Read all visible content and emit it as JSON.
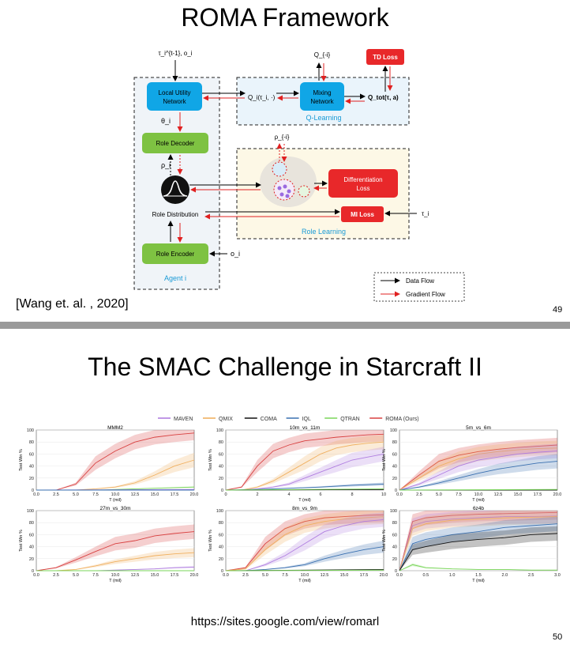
{
  "slide1": {
    "title": "ROMA Framework",
    "citation": "[Wang et. al. , 2020]",
    "page_number": "49",
    "diagram": {
      "agent_label": "Agent i",
      "local_utility": "Local Utility Network",
      "role_decoder": "Role Decoder",
      "role_distribution": "Role Distribution",
      "role_encoder": "Role Encoder",
      "mixing_network": "Mixing Network",
      "q_learning": "Q-Learning",
      "td_loss": "TD Loss",
      "diff_loss": "Differentiation Loss",
      "mi_loss": "MI Loss",
      "role_learning": "Role Learning",
      "input_top": "τ_i^{t-1}, o_i",
      "theta": "θ_i",
      "rho": "ρ_i",
      "o_i": "o_i",
      "q_minus_i": "Q_{-i}",
      "rho_minus_i": "ρ_{-i}",
      "q_i": "Q_i(τ_i, ·)",
      "q_tot": "Q_tot(τ, a)",
      "tau_i": "τ_i",
      "data_flow": "Data Flow",
      "gradient_flow": "Gradient Flow"
    }
  },
  "slide2": {
    "title": "The SMAC Challenge in Starcraft II",
    "url": "https://sites.google.com/view/romarl",
    "page_number": "50",
    "legend": [
      {
        "name": "MAVEN",
        "color": "#b07ee0"
      },
      {
        "name": "QMIX",
        "color": "#f0b060"
      },
      {
        "name": "COMA",
        "color": "#111111"
      },
      {
        "name": "IQL",
        "color": "#3a70b0"
      },
      {
        "name": "QTRAN",
        "color": "#7ad65a"
      },
      {
        "name": "ROMA (Ours)",
        "color": "#d84040"
      }
    ]
  },
  "chart_data": [
    {
      "type": "line",
      "title": "MMM2",
      "xlabel": "T (mil)",
      "ylabel": "Test Win %",
      "xlim": [
        0,
        20
      ],
      "ylim": [
        0,
        100
      ],
      "xticks": [
        "0.0",
        "2.5",
        "5.0",
        "7.5",
        "10.0",
        "12.5",
        "15.0",
        "17.5",
        "20.0"
      ],
      "yticks": [
        "0",
        "20",
        "40",
        "60",
        "80",
        "100"
      ],
      "series": [
        {
          "name": "ROMA (Ours)",
          "x": [
            0,
            2.5,
            5,
            7.5,
            10,
            12.5,
            15,
            17.5,
            20
          ],
          "y": [
            0,
            0,
            10,
            45,
            65,
            80,
            88,
            92,
            95
          ]
        },
        {
          "name": "QMIX",
          "x": [
            0,
            2.5,
            5,
            7.5,
            10,
            12.5,
            15,
            17.5,
            20
          ],
          "y": [
            0,
            0,
            0,
            2,
            5,
            12,
            25,
            40,
            50
          ]
        },
        {
          "name": "QTRAN",
          "x": [
            0,
            2.5,
            5,
            7.5,
            10,
            12.5,
            15,
            17.5,
            20
          ],
          "y": [
            0,
            0,
            0,
            0,
            1,
            2,
            3,
            4,
            5
          ]
        },
        {
          "name": "MAVEN",
          "x": [
            0,
            20
          ],
          "y": [
            0,
            1
          ]
        },
        {
          "name": "COMA",
          "x": [
            0,
            20
          ],
          "y": [
            0,
            0
          ]
        },
        {
          "name": "IQL",
          "x": [
            0,
            20
          ],
          "y": [
            0,
            0
          ]
        }
      ]
    },
    {
      "type": "line",
      "title": "10m_vs_11m",
      "xlabel": "T (mil)",
      "ylabel": "Test Win %",
      "xlim": [
        0,
        10
      ],
      "ylim": [
        0,
        100
      ],
      "xticks": [
        "0",
        "2",
        "4",
        "6",
        "8",
        "10"
      ],
      "yticks": [
        "0",
        "20",
        "40",
        "60",
        "80",
        "100"
      ],
      "series": [
        {
          "name": "ROMA (Ours)",
          "x": [
            0,
            1,
            2,
            3,
            4,
            5,
            6,
            7,
            8,
            9,
            10
          ],
          "y": [
            0,
            5,
            40,
            65,
            75,
            82,
            85,
            88,
            90,
            92,
            93
          ]
        },
        {
          "name": "QMIX",
          "x": [
            0,
            1,
            2,
            3,
            4,
            5,
            6,
            7,
            8,
            9,
            10
          ],
          "y": [
            0,
            0,
            5,
            15,
            30,
            45,
            60,
            70,
            75,
            78,
            80
          ]
        },
        {
          "name": "MAVEN",
          "x": [
            0,
            1,
            2,
            3,
            4,
            5,
            6,
            7,
            8,
            9,
            10
          ],
          "y": [
            0,
            0,
            2,
            5,
            10,
            20,
            30,
            40,
            50,
            55,
            60
          ]
        },
        {
          "name": "IQL",
          "x": [
            0,
            2,
            4,
            6,
            8,
            10
          ],
          "y": [
            0,
            1,
            3,
            5,
            8,
            10
          ]
        },
        {
          "name": "COMA",
          "x": [
            0,
            10
          ],
          "y": [
            0,
            1
          ]
        },
        {
          "name": "QTRAN",
          "x": [
            0,
            10
          ],
          "y": [
            0,
            2
          ]
        }
      ]
    },
    {
      "type": "line",
      "title": "5m_vs_6m",
      "xlabel": "T (mil)",
      "ylabel": "Test Win %",
      "xlim": [
        0,
        20
      ],
      "ylim": [
        0,
        100
      ],
      "xticks": [
        "0.0",
        "2.5",
        "5.0",
        "7.5",
        "10.0",
        "12.5",
        "15.0",
        "17.5",
        "20.0"
      ],
      "yticks": [
        "0",
        "20",
        "40",
        "60",
        "80",
        "100"
      ],
      "series": [
        {
          "name": "ROMA (Ours)",
          "x": [
            0,
            2.5,
            5,
            7.5,
            10,
            12.5,
            15,
            17.5,
            20
          ],
          "y": [
            0,
            25,
            48,
            58,
            64,
            68,
            71,
            73,
            75
          ]
        },
        {
          "name": "QMIX",
          "x": [
            0,
            2.5,
            5,
            7.5,
            10,
            12.5,
            15,
            17.5,
            20
          ],
          "y": [
            0,
            20,
            40,
            52,
            60,
            64,
            67,
            69,
            70
          ]
        },
        {
          "name": "MAVEN",
          "x": [
            0,
            2.5,
            5,
            7.5,
            10,
            12.5,
            15,
            17.5,
            20
          ],
          "y": [
            0,
            10,
            25,
            40,
            50,
            55,
            60,
            63,
            65
          ]
        },
        {
          "name": "IQL",
          "x": [
            0,
            2.5,
            5,
            7.5,
            10,
            12.5,
            15,
            17.5,
            20
          ],
          "y": [
            0,
            5,
            12,
            20,
            28,
            35,
            40,
            45,
            48
          ]
        },
        {
          "name": "COMA",
          "x": [
            0,
            20
          ],
          "y": [
            0,
            0
          ]
        },
        {
          "name": "QTRAN",
          "x": [
            0,
            20
          ],
          "y": [
            0,
            1
          ]
        }
      ]
    },
    {
      "type": "line",
      "title": "27m_vs_30m",
      "xlabel": "T (mil)",
      "ylabel": "Test Win %",
      "xlim": [
        0,
        20
      ],
      "ylim": [
        0,
        100
      ],
      "xticks": [
        "0.0",
        "2.5",
        "5.0",
        "7.5",
        "10.0",
        "12.5",
        "15.0",
        "17.5",
        "20.0"
      ],
      "yticks": [
        "0",
        "20",
        "40",
        "60",
        "80",
        "100"
      ],
      "series": [
        {
          "name": "ROMA (Ours)",
          "x": [
            0,
            2.5,
            5,
            7.5,
            10,
            12.5,
            15,
            17.5,
            20
          ],
          "y": [
            0,
            5,
            18,
            32,
            45,
            50,
            58,
            62,
            65
          ]
        },
        {
          "name": "QMIX",
          "x": [
            0,
            2.5,
            5,
            7.5,
            10,
            12.5,
            15,
            17.5,
            20
          ],
          "y": [
            0,
            0,
            2,
            8,
            15,
            20,
            25,
            28,
            30
          ]
        },
        {
          "name": "MAVEN",
          "x": [
            0,
            2.5,
            5,
            7.5,
            10,
            12.5,
            15,
            17.5,
            20
          ],
          "y": [
            0,
            0,
            0,
            0,
            1,
            2,
            3,
            5,
            6
          ]
        },
        {
          "name": "COMA",
          "x": [
            0,
            20
          ],
          "y": [
            0,
            0
          ]
        },
        {
          "name": "IQL",
          "x": [
            0,
            20
          ],
          "y": [
            0,
            0
          ]
        },
        {
          "name": "QTRAN",
          "x": [
            0,
            20
          ],
          "y": [
            0,
            0
          ]
        }
      ]
    },
    {
      "type": "line",
      "title": "8m_vs_9m",
      "xlabel": "T (mil)",
      "ylabel": "Test Win %",
      "xlim": [
        0,
        20
      ],
      "ylim": [
        0,
        100
      ],
      "xticks": [
        "0.0",
        "2.5",
        "5.0",
        "7.5",
        "10.0",
        "12.5",
        "15.0",
        "17.5",
        "20.0"
      ],
      "yticks": [
        "0",
        "20",
        "40",
        "60",
        "80",
        "100"
      ],
      "series": [
        {
          "name": "ROMA (Ours)",
          "x": [
            0,
            2.5,
            5,
            7.5,
            10,
            12.5,
            15,
            17.5,
            20
          ],
          "y": [
            0,
            5,
            45,
            70,
            82,
            88,
            90,
            92,
            93
          ]
        },
        {
          "name": "QMIX",
          "x": [
            0,
            2.5,
            5,
            7.5,
            10,
            12.5,
            15,
            17.5,
            20
          ],
          "y": [
            0,
            3,
            35,
            60,
            75,
            82,
            86,
            88,
            90
          ]
        },
        {
          "name": "MAVEN",
          "x": [
            0,
            2.5,
            5,
            7.5,
            10,
            12.5,
            15,
            17.5,
            20
          ],
          "y": [
            0,
            0,
            10,
            25,
            45,
            65,
            75,
            82,
            85
          ]
        },
        {
          "name": "IQL",
          "x": [
            0,
            2.5,
            5,
            7.5,
            10,
            12.5,
            15,
            17.5,
            20
          ],
          "y": [
            0,
            0,
            2,
            5,
            10,
            20,
            28,
            35,
            40
          ]
        },
        {
          "name": "COMA",
          "x": [
            0,
            20
          ],
          "y": [
            0,
            2
          ]
        },
        {
          "name": "QTRAN",
          "x": [
            0,
            20
          ],
          "y": [
            0,
            1
          ]
        }
      ]
    },
    {
      "type": "line",
      "title": "6z4b",
      "xlabel": "T (mil)",
      "ylabel": "Test Win %",
      "xlim": [
        0,
        3
      ],
      "ylim": [
        0,
        100
      ],
      "xticks": [
        "0.0",
        "0.5",
        "1.0",
        "1.5",
        "2.0",
        "2.5",
        "3.0"
      ],
      "yticks": [
        "0",
        "20",
        "40",
        "60",
        "80",
        "100"
      ],
      "series": [
        {
          "name": "ROMA (Ours)",
          "x": [
            0,
            0.25,
            0.5,
            1,
            1.5,
            2,
            2.5,
            3
          ],
          "y": [
            0,
            82,
            88,
            92,
            94,
            95,
            96,
            97
          ]
        },
        {
          "name": "MAVEN",
          "x": [
            0,
            0.25,
            0.5,
            1,
            1.5,
            2,
            2.5,
            3
          ],
          "y": [
            0,
            75,
            82,
            86,
            88,
            90,
            90,
            91
          ]
        },
        {
          "name": "QMIX",
          "x": [
            0,
            0.25,
            0.5,
            1,
            1.5,
            2,
            2.5,
            3
          ],
          "y": [
            0,
            70,
            78,
            84,
            86,
            88,
            89,
            90
          ]
        },
        {
          "name": "IQL",
          "x": [
            0,
            0.25,
            0.5,
            1,
            1.5,
            2,
            2.5,
            3
          ],
          "y": [
            0,
            45,
            52,
            60,
            65,
            72,
            75,
            78
          ]
        },
        {
          "name": "COMA",
          "x": [
            0,
            0.25,
            0.5,
            1,
            1.5,
            2,
            2.5,
            3
          ],
          "y": [
            0,
            35,
            40,
            48,
            52,
            55,
            60,
            62
          ]
        },
        {
          "name": "QTRAN",
          "x": [
            0,
            0.25,
            0.5,
            1,
            1.5,
            2,
            2.5,
            3
          ],
          "y": [
            0,
            10,
            5,
            3,
            2,
            2,
            1,
            1
          ]
        }
      ]
    }
  ]
}
